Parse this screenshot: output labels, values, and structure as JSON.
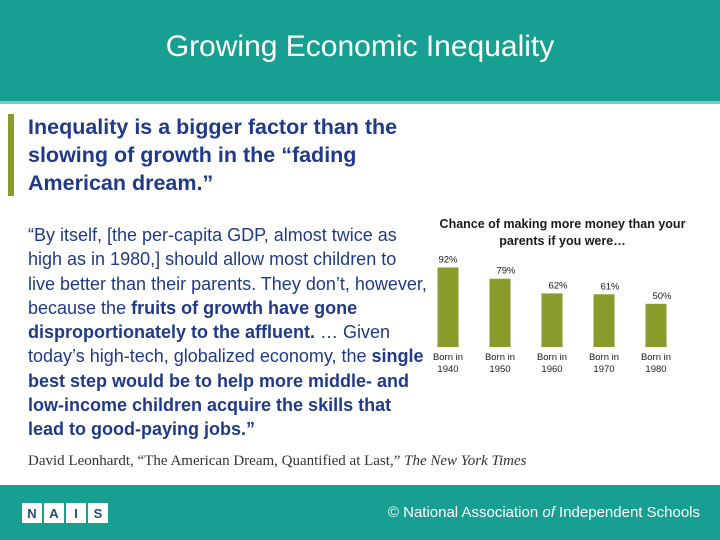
{
  "header": {
    "title": "Growing Economic Inequality",
    "bar_color": "#179f92"
  },
  "subhead": {
    "text": "Inequality is a bigger factor than the slowing of growth in the “fading American dream.”",
    "accent_color": "#8a9a2b"
  },
  "quote": {
    "part1": "“By itself, [the per-capita GDP, almost twice as high as in 1980,] should allow most children to live better than their parents. They don’t, however, because the ",
    "bold1": "fruits of growth have gone disproportionately to the affluent.",
    "part2": " … Given today’s high-tech, globalized economy, the ",
    "bold2": "single best step would be to help more middle- and low-income children acquire the skills that lead to good-paying jobs.”"
  },
  "citation": {
    "prefix": "David Leonhardt, “The American Dream, Quantified at Last,” ",
    "source": "The New York Times"
  },
  "chart_data": {
    "type": "bar",
    "title": "Chance of making more money than your parents if you were…",
    "categories": [
      "Born in 1940",
      "Born in 1950",
      "Born in 1960",
      "Born in 1970",
      "Born in 1980"
    ],
    "category_lines": [
      [
        "Born in",
        "1940"
      ],
      [
        "Born in",
        "1950"
      ],
      [
        "Born in",
        "1960"
      ],
      [
        "Born in",
        "1970"
      ],
      [
        "Born in",
        "1980"
      ]
    ],
    "values": [
      92,
      79,
      62,
      61,
      50
    ],
    "value_labels": [
      "92%",
      "79%",
      "62%",
      "61%",
      "50%"
    ],
    "ylim": [
      0,
      100
    ],
    "bar_color": "#8a9a2b"
  },
  "footer": {
    "logo_letters": [
      "N",
      "A",
      "I",
      "S"
    ],
    "copyright": "©",
    "org_part1": "National Association ",
    "org_part2": "of",
    "org_part3": " Independent Schools"
  }
}
